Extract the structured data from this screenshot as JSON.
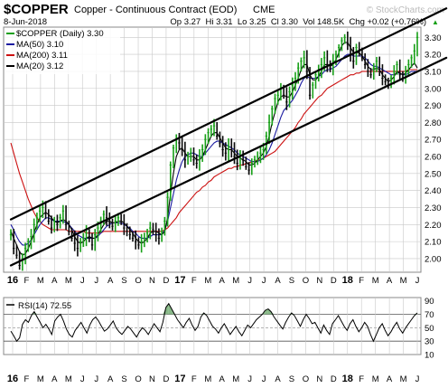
{
  "header": {
    "symbol": "$COPPER",
    "name": "Copper - Continuous Contract (EOD)",
    "exchange": "CME",
    "date": "8-Jun-2018",
    "ohlc": "Op 3.27  Hi 3.31  Lo 3.25  Cl 3.30  Vol 148.5K  Chg +0.02 (+0.76%)",
    "chg_arrow": "▲",
    "watermark": "© StockCharts.com"
  },
  "colors": {
    "price": "#18a018",
    "price_down": "#0a0a0a",
    "ma50": "#1a1aa0",
    "ma200": "#cc1010",
    "ma20": "#000000",
    "channel": "#000000",
    "rsi_line": "#000000",
    "rsi_fill": "#6aa86a",
    "grid": "#c8c8c8",
    "accent": "#d42020"
  },
  "chart_data": [
    {
      "type": "line",
      "legend": [
        {
          "label": "$COPPER (Daily) 3.30",
          "key": "price"
        },
        {
          "label": "MA(50) 3.10",
          "key": "ma50"
        },
        {
          "label": "MA(200) 3.11",
          "key": "ma200"
        },
        {
          "label": "MA(20) 3.12",
          "key": "ma20"
        }
      ],
      "ylim": [
        1.92,
        3.36
      ],
      "y_ticks": [
        "3.30",
        "3.20",
        "3.10",
        "3.00",
        "2.90",
        "2.80",
        "2.70",
        "2.60",
        "2.50",
        "2.40",
        "2.30",
        "2.20",
        "2.10",
        "2.00"
      ],
      "x_ticks": [
        "16",
        "F",
        "M",
        "A",
        "M",
        "J",
        "J",
        "A",
        "S",
        "O",
        "N",
        "D",
        "17",
        "F",
        "M",
        "A",
        "M",
        "J",
        "J",
        "A",
        "S",
        "O",
        "N",
        "D",
        "18",
        "F",
        "M",
        "A",
        "M",
        "J"
      ],
      "bold_x_ticks": [
        "16",
        "17",
        "18"
      ],
      "series": [
        {
          "key": "price",
          "values": [
            2.14,
            2.06,
            2.02,
            1.96,
            2.0,
            2.06,
            2.1,
            2.13,
            2.2,
            2.24,
            2.28,
            2.3,
            2.27,
            2.22,
            2.18,
            2.22,
            2.2,
            2.24,
            2.28,
            2.2,
            2.16,
            2.12,
            2.09,
            2.06,
            2.1,
            2.12,
            2.15,
            2.12,
            2.08,
            2.14,
            2.18,
            2.22,
            2.26,
            2.24,
            2.21,
            2.19,
            2.22,
            2.24,
            2.22,
            2.18,
            2.16,
            2.14,
            2.12,
            2.1,
            2.08,
            2.1,
            2.12,
            2.15,
            2.18,
            2.17,
            2.14,
            2.12,
            2.16,
            2.22,
            2.36,
            2.55,
            2.65,
            2.7,
            2.68,
            2.64,
            2.58,
            2.6,
            2.62,
            2.58,
            2.56,
            2.6,
            2.64,
            2.7,
            2.74,
            2.76,
            2.78,
            2.72,
            2.68,
            2.64,
            2.62,
            2.66,
            2.64,
            2.6,
            2.56,
            2.6,
            2.58,
            2.54,
            2.52,
            2.56,
            2.58,
            2.6,
            2.62,
            2.64,
            2.72,
            2.8,
            2.88,
            2.94,
            2.96,
            3.0,
            2.96,
            2.92,
            2.98,
            3.02,
            3.06,
            3.12,
            3.16,
            3.18,
            3.1,
            2.96,
            3.02,
            3.08,
            3.1,
            3.14,
            3.18,
            3.14,
            3.12,
            3.16,
            3.2,
            3.24,
            3.28,
            3.3,
            3.26,
            3.2,
            3.16,
            3.24,
            3.22,
            3.18,
            3.14,
            3.1,
            3.08,
            3.12,
            3.16,
            3.1,
            3.06,
            3.04,
            3.02,
            3.06,
            3.1,
            3.14,
            3.08,
            3.06,
            3.1,
            3.14,
            3.18,
            3.22,
            3.3
          ]
        },
        {
          "key": "ma50",
          "values": [
            2.2,
            2.17,
            2.13,
            2.1,
            2.08,
            2.08,
            2.09,
            2.11,
            2.14,
            2.17,
            2.2,
            2.22,
            2.24,
            2.24,
            2.23,
            2.22,
            2.22,
            2.22,
            2.22,
            2.21,
            2.2,
            2.18,
            2.16,
            2.14,
            2.13,
            2.12,
            2.12,
            2.12,
            2.12,
            2.12,
            2.13,
            2.15,
            2.17,
            2.19,
            2.2,
            2.21,
            2.21,
            2.21,
            2.21,
            2.2,
            2.19,
            2.18,
            2.16,
            2.15,
            2.13,
            2.12,
            2.12,
            2.12,
            2.13,
            2.14,
            2.14,
            2.14,
            2.14,
            2.17,
            2.22,
            2.3,
            2.38,
            2.46,
            2.52,
            2.57,
            2.6,
            2.61,
            2.62,
            2.62,
            2.61,
            2.6,
            2.6,
            2.62,
            2.64,
            2.66,
            2.68,
            2.69,
            2.69,
            2.68,
            2.67,
            2.66,
            2.65,
            2.64,
            2.62,
            2.61,
            2.6,
            2.59,
            2.58,
            2.57,
            2.57,
            2.57,
            2.58,
            2.59,
            2.61,
            2.64,
            2.68,
            2.73,
            2.78,
            2.83,
            2.87,
            2.89,
            2.91,
            2.93,
            2.96,
            2.99,
            3.03,
            3.06,
            3.07,
            3.06,
            3.06,
            3.06,
            3.07,
            3.08,
            3.1,
            3.11,
            3.11,
            3.12,
            3.13,
            3.15,
            3.17,
            3.19,
            3.2,
            3.2,
            3.19,
            3.19,
            3.19,
            3.19,
            3.18,
            3.16,
            3.14,
            3.13,
            3.13,
            3.12,
            3.11,
            3.1,
            3.09,
            3.08,
            3.08,
            3.09,
            3.09,
            3.08,
            3.08,
            3.09,
            3.1,
            3.1,
            3.1
          ]
        },
        {
          "key": "ma200",
          "values": [
            2.68,
            2.62,
            2.56,
            2.5,
            2.45,
            2.4,
            2.35,
            2.31,
            2.27,
            2.24,
            2.22,
            2.2,
            2.19,
            2.18,
            2.17,
            2.17,
            2.17,
            2.17,
            2.17,
            2.17,
            2.16,
            2.16,
            2.16,
            2.16,
            2.16,
            2.16,
            2.15,
            2.15,
            2.15,
            2.15,
            2.15,
            2.15,
            2.16,
            2.16,
            2.16,
            2.16,
            2.16,
            2.16,
            2.16,
            2.16,
            2.16,
            2.16,
            2.16,
            2.16,
            2.16,
            2.16,
            2.16,
            2.16,
            2.16,
            2.16,
            2.16,
            2.16,
            2.16,
            2.17,
            2.18,
            2.2,
            2.22,
            2.24,
            2.27,
            2.29,
            2.31,
            2.33,
            2.35,
            2.37,
            2.39,
            2.4,
            2.42,
            2.43,
            2.45,
            2.46,
            2.48,
            2.49,
            2.5,
            2.51,
            2.52,
            2.53,
            2.53,
            2.54,
            2.54,
            2.55,
            2.55,
            2.56,
            2.56,
            2.57,
            2.57,
            2.58,
            2.58,
            2.59,
            2.6,
            2.61,
            2.62,
            2.63,
            2.65,
            2.67,
            2.69,
            2.71,
            2.73,
            2.75,
            2.77,
            2.8,
            2.82,
            2.85,
            2.87,
            2.89,
            2.91,
            2.93,
            2.95,
            2.96,
            2.98,
            3.0,
            3.01,
            3.02,
            3.03,
            3.04,
            3.05,
            3.06,
            3.07,
            3.08,
            3.08,
            3.09,
            3.09,
            3.1,
            3.1,
            3.1,
            3.1,
            3.1,
            3.1,
            3.1,
            3.1,
            3.1,
            3.1,
            3.1,
            3.1,
            3.1,
            3.1,
            3.1,
            3.1,
            3.11,
            3.11,
            3.11,
            3.11
          ]
        },
        {
          "key": "ma20",
          "values": [
            2.16,
            2.12,
            2.08,
            2.04,
            2.02,
            2.03,
            2.06,
            2.1,
            2.15,
            2.2,
            2.24,
            2.26,
            2.27,
            2.26,
            2.24,
            2.22,
            2.21,
            2.22,
            2.23,
            2.22,
            2.2,
            2.17,
            2.13,
            2.1,
            2.09,
            2.1,
            2.12,
            2.13,
            2.12,
            2.12,
            2.14,
            2.17,
            2.2,
            2.22,
            2.22,
            2.21,
            2.21,
            2.22,
            2.22,
            2.21,
            2.19,
            2.17,
            2.15,
            2.12,
            2.1,
            2.09,
            2.1,
            2.12,
            2.15,
            2.16,
            2.16,
            2.15,
            2.14,
            2.16,
            2.24,
            2.38,
            2.5,
            2.6,
            2.64,
            2.65,
            2.62,
            2.6,
            2.6,
            2.6,
            2.58,
            2.58,
            2.6,
            2.64,
            2.68,
            2.72,
            2.74,
            2.74,
            2.71,
            2.68,
            2.65,
            2.64,
            2.64,
            2.62,
            2.6,
            2.59,
            2.58,
            2.57,
            2.55,
            2.55,
            2.56,
            2.58,
            2.6,
            2.62,
            2.66,
            2.72,
            2.8,
            2.86,
            2.92,
            2.95,
            2.96,
            2.95,
            2.95,
            2.98,
            3.02,
            3.06,
            3.11,
            3.14,
            3.14,
            3.08,
            3.05,
            3.05,
            3.07,
            3.1,
            3.14,
            3.14,
            3.13,
            3.14,
            3.17,
            3.21,
            3.25,
            3.27,
            3.27,
            3.24,
            3.21,
            3.21,
            3.21,
            3.19,
            3.16,
            3.13,
            3.11,
            3.11,
            3.12,
            3.11,
            3.08,
            3.06,
            3.04,
            3.05,
            3.07,
            3.1,
            3.09,
            3.08,
            3.09,
            3.11,
            3.13,
            3.15,
            3.12
          ]
        }
      ],
      "channels": [
        {
          "from": [
            0,
            2.23
          ],
          "to": [
            150,
            3.47
          ]
        },
        {
          "from": [
            0,
            1.96
          ],
          "to": [
            150,
            3.18
          ]
        }
      ]
    },
    {
      "type": "line",
      "legend": [
        {
          "label": "RSI(14) 72.55",
          "key": "rsi"
        }
      ],
      "ylim": [
        10,
        95
      ],
      "y_ticks": [
        "90",
        "70",
        "50",
        "30",
        "10"
      ],
      "reference_lines": [
        70,
        50,
        30
      ],
      "x_ticks": [
        "16",
        "F",
        "M",
        "A",
        "M",
        "J",
        "J",
        "A",
        "S",
        "O",
        "N",
        "D",
        "17",
        "F",
        "M",
        "A",
        "M",
        "J",
        "J",
        "A",
        "S",
        "O",
        "N",
        "D",
        "18",
        "F",
        "M",
        "A",
        "M",
        "J"
      ],
      "series": [
        {
          "key": "rsi",
          "values": [
            45,
            38,
            30,
            35,
            55,
            62,
            58,
            68,
            74,
            66,
            58,
            50,
            55,
            48,
            40,
            60,
            66,
            70,
            60,
            48,
            40,
            36,
            46,
            52,
            58,
            50,
            42,
            54,
            62,
            66,
            60,
            52,
            45,
            48,
            54,
            60,
            50,
            44,
            40,
            46,
            52,
            48,
            42,
            36,
            44,
            50,
            46,
            40,
            48,
            56,
            50,
            44,
            58,
            80,
            86,
            78,
            70,
            62,
            56,
            50,
            58,
            64,
            54,
            46,
            52,
            66,
            72,
            68,
            60,
            52,
            48,
            42,
            50,
            56,
            48,
            40,
            46,
            52,
            44,
            38,
            46,
            54,
            50,
            56,
            62,
            66,
            70,
            76,
            78,
            74,
            66,
            60,
            54,
            48,
            58,
            66,
            72,
            68,
            60,
            52,
            62,
            70,
            64,
            56,
            58,
            50,
            42,
            54,
            46,
            40,
            56,
            62,
            68,
            60,
            52,
            46,
            56,
            62,
            52,
            44,
            50,
            58,
            52,
            40,
            30,
            40,
            50,
            56,
            46,
            38,
            44,
            52,
            58,
            48,
            42,
            50,
            56,
            62,
            68,
            72
          ]
        }
      ]
    }
  ]
}
